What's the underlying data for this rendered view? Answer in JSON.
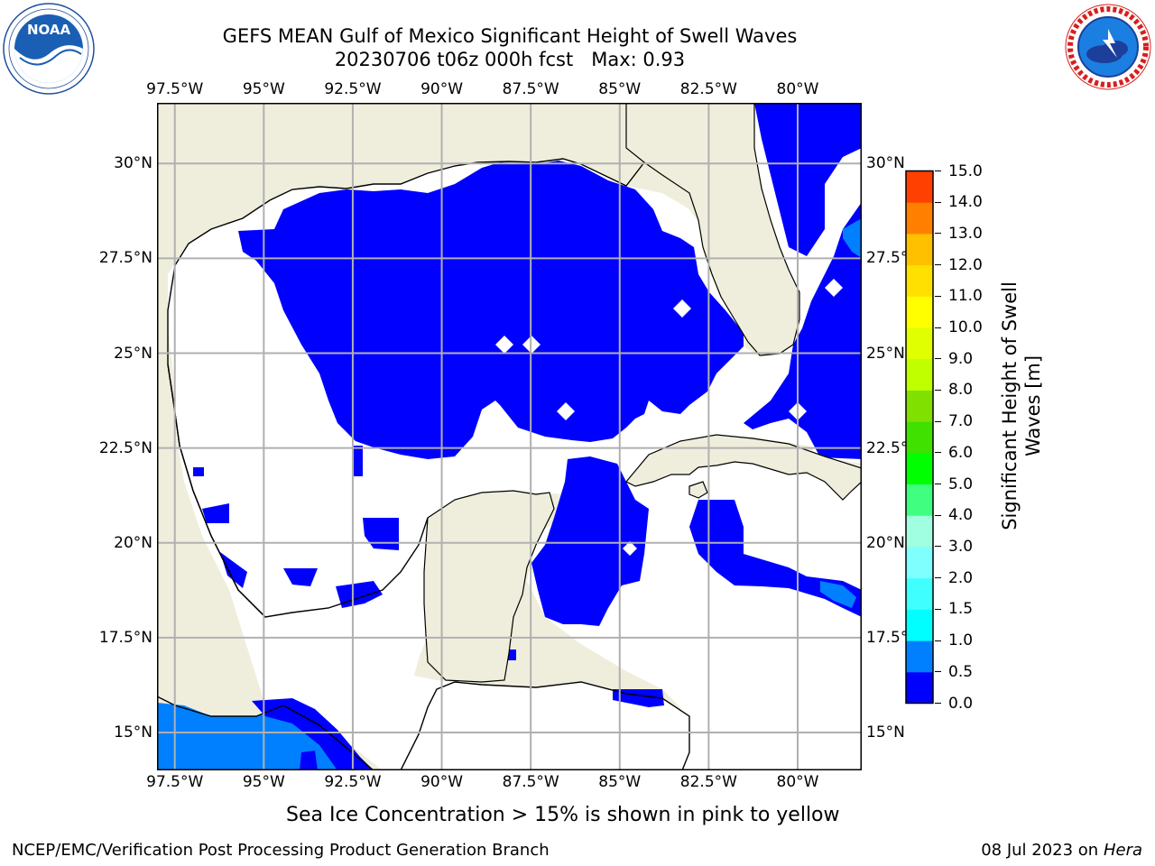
{
  "header": {
    "title_line1": "GEFS MEAN Gulf of Mexico Significant Height of Swell Waves",
    "title_line2": "20230706 t06z 000h fcst   Max: 0.93"
  },
  "logos": {
    "left": {
      "icon": "noaa-logo",
      "text": "NOAA",
      "ring_text": "NATIONAL OCEANIC AND ATMOSPHERIC ADMINISTRATION · U.S. DEPARTMENT OF COMMERCE"
    },
    "right": {
      "icon": "nws-logo",
      "ring_text": "NATIONAL WEATHER SERVICE"
    }
  },
  "map": {
    "lon_ticks": [
      "97.5°W",
      "95°W",
      "92.5°W",
      "90°W",
      "87.5°W",
      "85°W",
      "82.5°W",
      "80°W"
    ],
    "lon_values": [
      -97.5,
      -95,
      -92.5,
      -90,
      -87.5,
      -85,
      -82.5,
      -80
    ],
    "lat_ticks": [
      "30°N",
      "27.5°N",
      "25°N",
      "22.5°N",
      "20°N",
      "17.5°N",
      "15°N"
    ],
    "lat_values": [
      30,
      27.5,
      25,
      22.5,
      20,
      17.5,
      15
    ],
    "lon_range": [
      -98,
      -78.2
    ],
    "lat_range": [
      14,
      31.6
    ],
    "colors": {
      "land": "#efeedc",
      "ocean_low": "#0000ff",
      "ocean_mid": "#0080ff",
      "ocean_zero": "#ffffff",
      "grid": "#b0b0b0",
      "coast": "#000000"
    }
  },
  "colorbar": {
    "title_line1": "Significant Height of Swell",
    "title_line2": "Waves [m]",
    "labels": [
      "0.0",
      "0.5",
      "1.0",
      "1.5",
      "2.0",
      "3.0",
      "4.0",
      "5.0",
      "6.0",
      "7.0",
      "8.0",
      "9.0",
      "10.0",
      "11.0",
      "12.0",
      "13.0",
      "14.0",
      "15.0"
    ],
    "bin_colors": [
      "#0000ff",
      "#0080ff",
      "#00ffff",
      "#40ffff",
      "#80ffff",
      "#a0ffe0",
      "#40ff80",
      "#00ff00",
      "#40e000",
      "#80e000",
      "#c0ff00",
      "#e0ff00",
      "#ffff00",
      "#ffe000",
      "#ffc000",
      "#ff8000",
      "#ff4000",
      "#ff0000"
    ]
  },
  "note": "Sea Ice Concentration > 15% is shown in pink to yellow",
  "footer": {
    "left": "NCEP/EMC/Verification Post Processing Product Generation Branch",
    "date": "08 Jul 2023 on ",
    "machine": "Hera"
  }
}
